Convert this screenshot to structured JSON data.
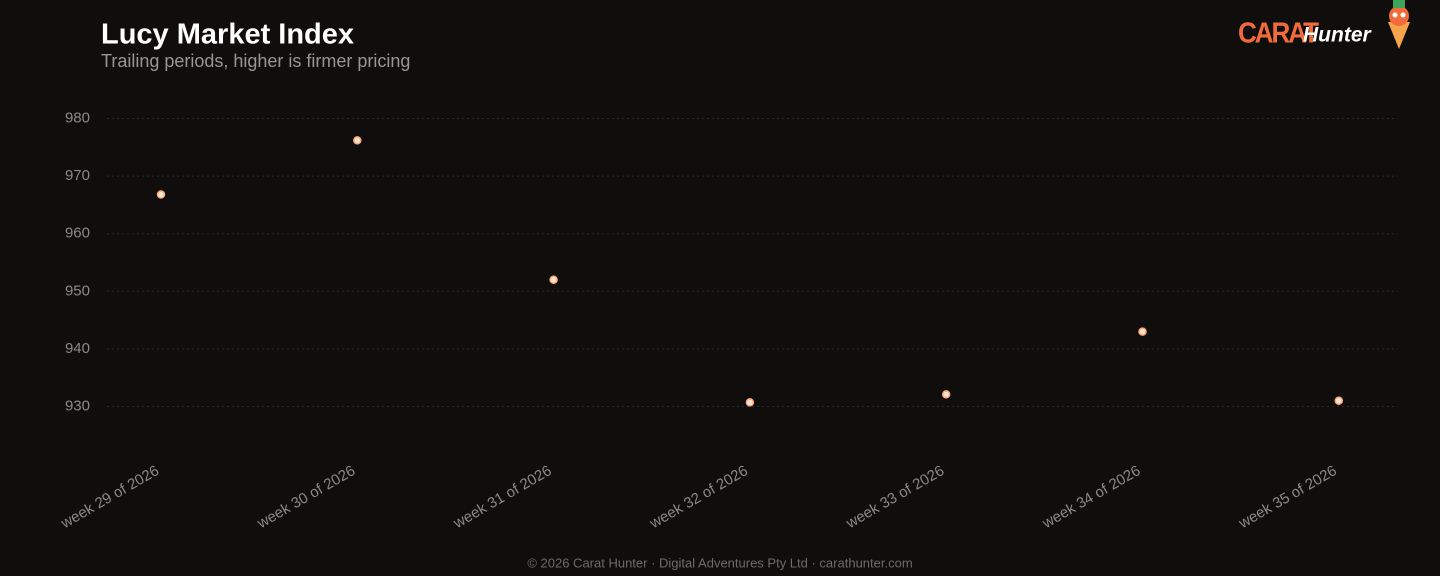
{
  "chart_data": {
    "type": "line",
    "title": "Lucy Market Index",
    "subtitle": "Trailing periods, higher is firmer pricing",
    "categories": [
      "week 29 of 2026",
      "week 30 of 2026",
      "week 31 of 2026",
      "week 32 of 2026",
      "week 33 of 2026",
      "week 34 of 2026",
      "week 35 of 2026"
    ],
    "series": [
      {
        "name": "Lucy Market Index",
        "color": "#fca878",
        "values": [
          966.8,
          976.2,
          952.0,
          930.7,
          932.1,
          943.0,
          931.0
        ]
      }
    ],
    "ylim": [
      924,
      984
    ],
    "yticks": [
      930,
      940,
      950,
      960,
      970,
      980
    ],
    "grid": true
  },
  "brand": {
    "mark": "CARAT",
    "name": "Hunter"
  },
  "footer": "© 2026 Carat Hunter · Digital Adventures Pty Ltd · carathunter.com"
}
